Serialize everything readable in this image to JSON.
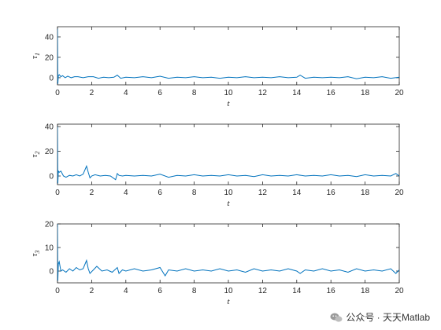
{
  "chart_data": [
    {
      "type": "line",
      "xlabel": "t",
      "ylabel": {
        "symbol": "τ",
        "subscript": "1"
      },
      "xlim": [
        0,
        20
      ],
      "ylim": [
        -7,
        50
      ],
      "xticks": [
        "0",
        "2",
        "4",
        "6",
        "8",
        "10",
        "12",
        "14",
        "16",
        "18",
        "20"
      ],
      "yticks": [
        "0",
        "20",
        "40"
      ],
      "grid": false,
      "line_color": "#0072BD",
      "series": [
        {
          "x": [
            0,
            0.02,
            0.05,
            0.1,
            0.2,
            0.3,
            0.45,
            0.6,
            0.8,
            1.0,
            1.2,
            1.5,
            1.8,
            2.1,
            2.4,
            2.7,
            3.0,
            3.3,
            3.5,
            3.7,
            4.0,
            4.5,
            5.0,
            5.5,
            6.0,
            6.5,
            7.0,
            7.5,
            8.0,
            8.5,
            9.0,
            9.5,
            10.0,
            10.5,
            11.0,
            11.5,
            12.0,
            12.5,
            13.0,
            13.5,
            14.0,
            14.2,
            14.5,
            15.0,
            15.5,
            16.0,
            16.5,
            17.0,
            17.5,
            18.0,
            18.5,
            19.0,
            19.5,
            20.0
          ],
          "y": [
            48,
            -6,
            2,
            3,
            1,
            2,
            0,
            1.5,
            0,
            1,
            1,
            0,
            1,
            1,
            -0.5,
            0.5,
            0,
            0.5,
            2.5,
            -0.5,
            0.5,
            0,
            1,
            0,
            1.5,
            -0.5,
            0.5,
            0,
            1,
            0,
            0.5,
            -0.5,
            0.5,
            0,
            1,
            0,
            0.5,
            0,
            1,
            0,
            0.5,
            2.5,
            -0.5,
            0.5,
            0,
            0.5,
            0,
            1,
            -1,
            0.5,
            0,
            1,
            -0.5,
            0.5
          ]
        }
      ]
    },
    {
      "type": "line",
      "xlabel": "t",
      "ylabel": {
        "symbol": "τ",
        "subscript": "2"
      },
      "xlim": [
        0,
        20
      ],
      "ylim": [
        -7,
        42
      ],
      "xticks": [
        "0",
        "2",
        "4",
        "6",
        "8",
        "10",
        "12",
        "14",
        "16",
        "18",
        "20"
      ],
      "yticks": [
        "0",
        "20",
        "40"
      ],
      "grid": false,
      "line_color": "#0072BD",
      "series": [
        {
          "x": [
            0,
            0.02,
            0.05,
            0.1,
            0.2,
            0.35,
            0.5,
            0.7,
            0.9,
            1.1,
            1.3,
            1.5,
            1.7,
            1.8,
            1.9,
            2.0,
            2.2,
            2.5,
            2.8,
            3.1,
            3.4,
            3.5,
            3.6,
            3.8,
            4.0,
            4.5,
            5.0,
            5.5,
            6.0,
            6.5,
            7.0,
            7.5,
            8.0,
            8.5,
            9.0,
            9.5,
            10.0,
            10.5,
            11.0,
            11.5,
            12.0,
            12.5,
            13.0,
            13.5,
            14.0,
            14.5,
            15.0,
            15.5,
            16.0,
            16.5,
            17.0,
            17.5,
            18.0,
            18.5,
            19.0,
            19.5,
            19.8,
            20.0
          ],
          "y": [
            40,
            -6,
            4,
            3,
            4,
            0,
            -1,
            0.5,
            0,
            1,
            0,
            1.5,
            8,
            3,
            -1.5,
            0,
            1,
            0,
            0.5,
            0,
            -3,
            2,
            0.5,
            0,
            0.5,
            0,
            0.5,
            0,
            1.5,
            -1,
            0.5,
            0,
            1,
            0,
            0.5,
            0,
            1,
            0,
            0.5,
            -0.5,
            1,
            0,
            0.5,
            0,
            1,
            0,
            0.5,
            0,
            1,
            0,
            0.5,
            -0.5,
            1,
            0,
            0.5,
            0,
            2,
            0
          ]
        }
      ]
    },
    {
      "type": "line",
      "xlabel": "t",
      "ylabel": {
        "symbol": "τ",
        "subscript": "3"
      },
      "xlim": [
        0,
        20
      ],
      "ylim": [
        -5,
        20
      ],
      "xticks": [
        "0",
        "2",
        "4",
        "6",
        "8",
        "10",
        "12",
        "14",
        "16",
        "18",
        "20"
      ],
      "yticks": [
        "0",
        "10",
        "20"
      ],
      "grid": false,
      "line_color": "#0072BD",
      "series": [
        {
          "x": [
            0,
            0.02,
            0.05,
            0.1,
            0.2,
            0.3,
            0.5,
            0.7,
            0.9,
            1.1,
            1.3,
            1.5,
            1.7,
            1.8,
            1.9,
            2.1,
            2.3,
            2.6,
            2.9,
            3.2,
            3.5,
            3.6,
            3.8,
            4.0,
            4.5,
            5.0,
            5.5,
            6.0,
            6.3,
            6.5,
            7.0,
            7.5,
            8.0,
            8.5,
            9.0,
            9.5,
            10.0,
            10.5,
            11.0,
            11.5,
            12.0,
            12.5,
            13.0,
            13.5,
            14.0,
            14.2,
            14.5,
            15.0,
            15.5,
            16.0,
            16.5,
            17.0,
            17.5,
            18.0,
            18.5,
            19.0,
            19.5,
            19.8,
            20.0
          ],
          "y": [
            20,
            -4,
            3,
            4,
            0,
            0.5,
            -0.5,
            1,
            0,
            1.5,
            0.5,
            1,
            4.5,
            1,
            -1,
            0.5,
            2,
            0,
            0.5,
            -0.5,
            1.5,
            -1,
            0.5,
            0,
            1,
            0,
            0.5,
            1.5,
            -2,
            0.5,
            0,
            1,
            0,
            0.5,
            0,
            1,
            0,
            0.5,
            -0.5,
            1,
            0,
            0.5,
            0,
            1,
            0,
            -1,
            0.5,
            0,
            1,
            0,
            0.5,
            -0.5,
            1,
            0,
            0.5,
            0,
            1,
            -1,
            0.5
          ]
        }
      ]
    }
  ],
  "watermark": {
    "text": "公众号 · 天天Matlab",
    "icon": "wechat-icon"
  }
}
